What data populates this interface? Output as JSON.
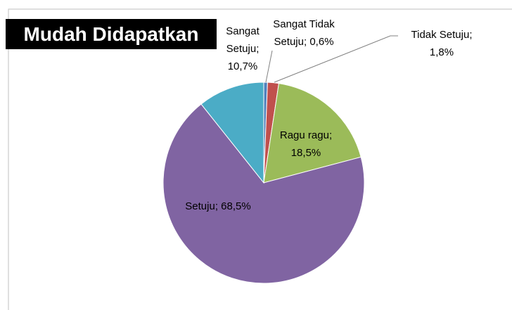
{
  "chart_data": {
    "type": "pie",
    "title": "Mudah Didapatkan",
    "categories": [
      "Sangat Tidak Setuju",
      "Tidak Setuju",
      "Ragu ragu",
      "Setuju",
      "Sangat Setuju"
    ],
    "values": [
      0.6,
      1.8,
      18.5,
      68.5,
      10.7
    ],
    "value_labels": [
      "0,6%",
      "1,8%",
      "18,5%",
      "68,5%",
      "10,7%"
    ],
    "label_separator": ";",
    "colors": [
      "#4f81bd",
      "#c0504d",
      "#9bbb59",
      "#8064a2",
      "#4bacc6"
    ]
  }
}
